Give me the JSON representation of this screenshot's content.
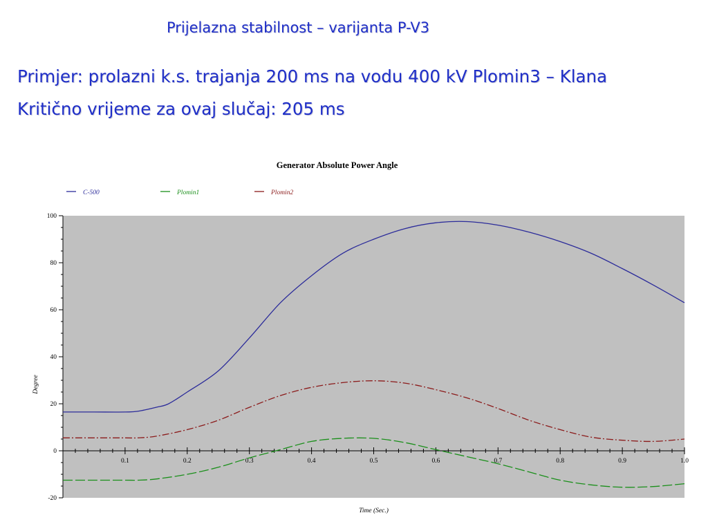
{
  "slide": {
    "title": "Prijelazna stabilnost – varijanta P-V3",
    "line1": "Primjer: prolazni k.s. trajanja 200 ms na vodu 400 kV Plomin3 – Klana",
    "line2": "Kritično vrijeme za ovaj slučaj: 205 ms"
  },
  "chart_data": {
    "type": "line",
    "title": "Generator Absolute Power Angle",
    "xlabel": "Time (Sec.)",
    "ylabel": "Degree",
    "xlim": [
      0,
      1.0
    ],
    "ylim": [
      -20,
      100
    ],
    "xticks": [
      0.1,
      0.2,
      0.3,
      0.4,
      0.5,
      0.6,
      0.7,
      0.8,
      0.9,
      1.0
    ],
    "xtick_labels": [
      "0.1",
      "0.2",
      "0.3",
      "0.4",
      "0.5",
      "0.6",
      "0.7",
      "0.8",
      "0.9",
      "1.0"
    ],
    "yticks": [
      -20,
      0,
      20,
      40,
      60,
      80,
      100
    ],
    "grid": false,
    "legend_position": "top-left",
    "background_color": "#c0c0c0",
    "series": [
      {
        "name": "C-500",
        "color": "#2b2b9a",
        "style": "solid",
        "x": [
          0,
          0.05,
          0.1,
          0.12,
          0.15,
          0.17,
          0.2,
          0.25,
          0.3,
          0.35,
          0.4,
          0.45,
          0.5,
          0.55,
          0.6,
          0.65,
          0.7,
          0.75,
          0.8,
          0.85,
          0.9,
          0.95,
          1.0
        ],
        "values": [
          16.5,
          16.5,
          16.5,
          16.8,
          18.5,
          20,
          25,
          34,
          48,
          63,
          74.5,
          84,
          90,
          94.5,
          97,
          97.5,
          96,
          93,
          89,
          84,
          77.5,
          70.5,
          63
        ]
      },
      {
        "name": "Plomin1",
        "color": "#1a8f1a",
        "style": "dashed",
        "x": [
          0,
          0.05,
          0.1,
          0.12,
          0.15,
          0.2,
          0.25,
          0.3,
          0.35,
          0.4,
          0.45,
          0.5,
          0.55,
          0.6,
          0.65,
          0.7,
          0.75,
          0.8,
          0.85,
          0.9,
          0.95,
          1.0
        ],
        "values": [
          -12.5,
          -12.5,
          -12.5,
          -12.5,
          -12,
          -10,
          -7,
          -3,
          0.5,
          4,
          5.3,
          5.3,
          3.5,
          0.5,
          -2.5,
          -5.5,
          -9,
          -12.5,
          -14.5,
          -15.5,
          -15.2,
          -14
        ]
      },
      {
        "name": "Plomin2",
        "color": "#8b1a1a",
        "style": "dashdot",
        "x": [
          0,
          0.05,
          0.1,
          0.12,
          0.15,
          0.2,
          0.25,
          0.3,
          0.35,
          0.4,
          0.45,
          0.5,
          0.55,
          0.6,
          0.65,
          0.7,
          0.75,
          0.8,
          0.85,
          0.9,
          0.95,
          1.0
        ],
        "values": [
          5.5,
          5.5,
          5.5,
          5.5,
          6.2,
          9,
          13,
          18.5,
          23.5,
          27,
          29,
          29.8,
          28.8,
          26,
          22.5,
          18,
          13,
          9,
          5.8,
          4.5,
          4,
          5
        ]
      }
    ]
  }
}
